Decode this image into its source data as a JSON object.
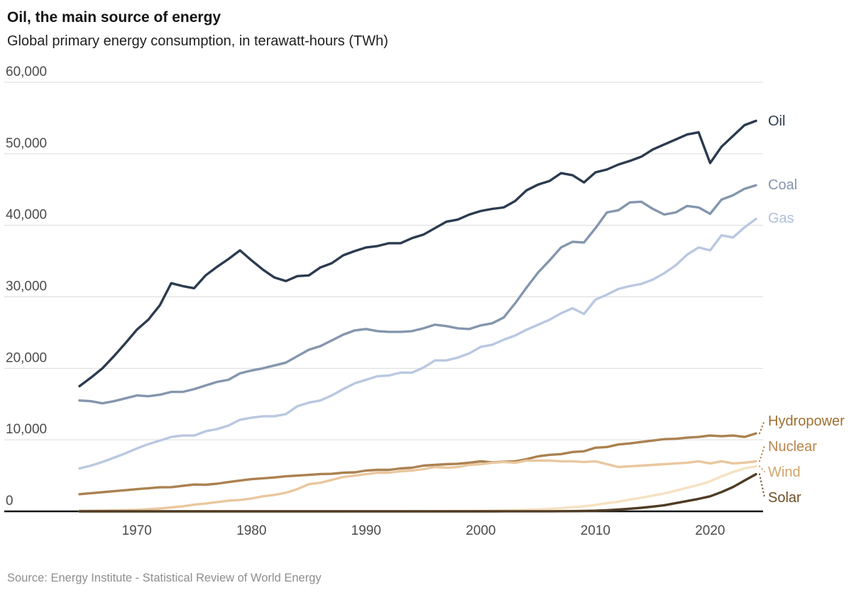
{
  "chart_data": {
    "type": "line",
    "title": "Oil, the main source of energy",
    "subtitle": "Global primary energy consumption, in terawatt-hours (TWh)",
    "x": [
      1965,
      1966,
      1967,
      1968,
      1969,
      1970,
      1971,
      1972,
      1973,
      1974,
      1975,
      1976,
      1977,
      1978,
      1979,
      1980,
      1981,
      1982,
      1983,
      1984,
      1985,
      1986,
      1987,
      1988,
      1989,
      1990,
      1991,
      1992,
      1993,
      1994,
      1995,
      1996,
      1997,
      1998,
      1999,
      2000,
      2001,
      2002,
      2003,
      2004,
      2005,
      2006,
      2007,
      2008,
      2009,
      2010,
      2011,
      2012,
      2013,
      2014,
      2015,
      2016,
      2017,
      2018,
      2019,
      2020,
      2021,
      2022,
      2023,
      2024
    ],
    "x_axis": {
      "tick_years": [
        1970,
        1980,
        1990,
        2000,
        2010,
        2020
      ]
    },
    "y_axis": {
      "min": 0,
      "max": 60000,
      "tick_interval": 10000,
      "tick_labels": [
        "0",
        "10,000",
        "20,000",
        "30,000",
        "40,000",
        "50,000",
        "60,000"
      ]
    },
    "series": [
      {
        "name": "Oil",
        "color": "#2b3b4f",
        "label_color": "#2b3b4f",
        "leader": false,
        "values": [
          17500,
          18700,
          20000,
          21700,
          23500,
          25400,
          26800,
          28800,
          31900,
          31500,
          31200,
          33000,
          34200,
          35300,
          36500,
          35100,
          33800,
          32700,
          32200,
          32900,
          33000,
          34100,
          34700,
          35800,
          36400,
          36900,
          37100,
          37500,
          37500,
          38200,
          38700,
          39600,
          40500,
          40800,
          41500,
          42000,
          42300,
          42500,
          43400,
          44900,
          45700,
          46200,
          47300,
          47000,
          46000,
          47400,
          47800,
          48500,
          49000,
          49600,
          50600,
          51300,
          52000,
          52700,
          53000,
          48700,
          51000,
          52500,
          54000,
          54600
        ]
      },
      {
        "name": "Coal",
        "color": "#8496ad",
        "label_color": "#8496ad",
        "leader": false,
        "values": [
          15500,
          15400,
          15100,
          15400,
          15800,
          16200,
          16100,
          16300,
          16700,
          16700,
          17100,
          17600,
          18100,
          18400,
          19300,
          19700,
          20000,
          20400,
          20800,
          21700,
          22600,
          23100,
          23900,
          24700,
          25300,
          25500,
          25200,
          25100,
          25100,
          25200,
          25600,
          26100,
          25900,
          25600,
          25500,
          26000,
          26300,
          27100,
          29100,
          31300,
          33400,
          35100,
          36900,
          37700,
          37600,
          39600,
          41800,
          42100,
          43200,
          43300,
          42300,
          41500,
          41800,
          42700,
          42500,
          41600,
          43600,
          44200,
          45100,
          45600
        ]
      },
      {
        "name": "Gas",
        "color": "#b9c8e1",
        "label_color": "#aebfdb",
        "leader": false,
        "values": [
          6000,
          6400,
          6900,
          7500,
          8100,
          8800,
          9400,
          9900,
          10400,
          10600,
          10600,
          11200,
          11500,
          12000,
          12800,
          13100,
          13300,
          13300,
          13600,
          14700,
          15200,
          15500,
          16200,
          17100,
          17900,
          18400,
          18900,
          19000,
          19400,
          19400,
          20100,
          21100,
          21100,
          21500,
          22100,
          23000,
          23300,
          24000,
          24600,
          25400,
          26100,
          26800,
          27700,
          28400,
          27600,
          29600,
          30300,
          31100,
          31500,
          31800,
          32400,
          33300,
          34400,
          35900,
          36900,
          36500,
          38600,
          38300,
          39700,
          40900
        ]
      },
      {
        "name": "Hydropower",
        "color": "#ab8150",
        "label_color": "#9e702f",
        "leader": true,
        "values": [
          2400,
          2540,
          2680,
          2820,
          2960,
          3100,
          3230,
          3360,
          3380,
          3570,
          3750,
          3720,
          3870,
          4100,
          4300,
          4500,
          4620,
          4740,
          4900,
          5000,
          5100,
          5220,
          5250,
          5400,
          5450,
          5700,
          5800,
          5800,
          6000,
          6100,
          6400,
          6500,
          6600,
          6650,
          6800,
          7000,
          6850,
          6950,
          7000,
          7300,
          7700,
          7900,
          8000,
          8300,
          8400,
          8900,
          9000,
          9350,
          9500,
          9700,
          9900,
          10100,
          10150,
          10300,
          10400,
          10600,
          10500,
          10600,
          10400,
          10900
        ]
      },
      {
        "name": "Nuclear",
        "color": "#e9c79e",
        "label_color": "#b9854c",
        "leader": true,
        "values": [
          70,
          90,
          110,
          140,
          170,
          200,
          290,
          400,
          550,
          700,
          930,
          1100,
          1300,
          1500,
          1600,
          1800,
          2100,
          2300,
          2600,
          3100,
          3800,
          4000,
          4400,
          4800,
          5000,
          5200,
          5400,
          5400,
          5600,
          5700,
          5900,
          6200,
          6100,
          6200,
          6500,
          6600,
          6800,
          6900,
          6800,
          7100,
          7100,
          7100,
          7000,
          7000,
          6900,
          7000,
          6600,
          6200,
          6300,
          6400,
          6500,
          6600,
          6700,
          6800,
          7000,
          6700,
          7000,
          6700,
          6800,
          7000
        ]
      },
      {
        "name": "Wind",
        "color": "#f6e1c1",
        "label_color": "#cda56a",
        "leader": true,
        "values": [
          0,
          0,
          0,
          0,
          0,
          0,
          0,
          0,
          0,
          0,
          0,
          0,
          0,
          0,
          0,
          0,
          0,
          0,
          0,
          0,
          1,
          1,
          2,
          3,
          5,
          8,
          9,
          12,
          14,
          18,
          21,
          25,
          31,
          42,
          56,
          80,
          100,
          130,
          170,
          220,
          270,
          350,
          450,
          580,
          700,
          900,
          1150,
          1350,
          1650,
          1900,
          2200,
          2500,
          2900,
          3300,
          3700,
          4200,
          4900,
          5500,
          6000,
          6300
        ]
      },
      {
        "name": "Solar",
        "color": "#4f3a23",
        "label_color": "#6f4f26",
        "leader": true,
        "values": [
          0,
          0,
          0,
          0,
          0,
          0,
          0,
          0,
          0,
          0,
          0,
          0,
          0,
          0,
          0,
          0,
          0,
          0,
          0,
          0,
          0,
          0,
          0,
          0,
          0,
          0,
          0,
          0,
          0,
          0,
          0,
          0,
          0,
          0,
          0,
          3,
          4,
          5,
          6,
          8,
          11,
          14,
          20,
          33,
          55,
          90,
          160,
          250,
          370,
          500,
          660,
          850,
          1150,
          1450,
          1750,
          2100,
          2700,
          3400,
          4300,
          5200
        ]
      }
    ],
    "layout": {
      "grid": true,
      "grid_color": "#dbdbdb",
      "axis_color": "#161616",
      "text_color": "#4b4b4b",
      "legend_position": "labels-at-line-ends-right",
      "label_slots": {
        "Oil": 82,
        "Coal": 172,
        "Gas": 219,
        "Hydropower": 505,
        "Nuclear": 541,
        "Wind": 577,
        "Solar": 613
      }
    }
  },
  "footer": {
    "source": "Source: Energy Institute - Statistical Review of World Energy"
  }
}
